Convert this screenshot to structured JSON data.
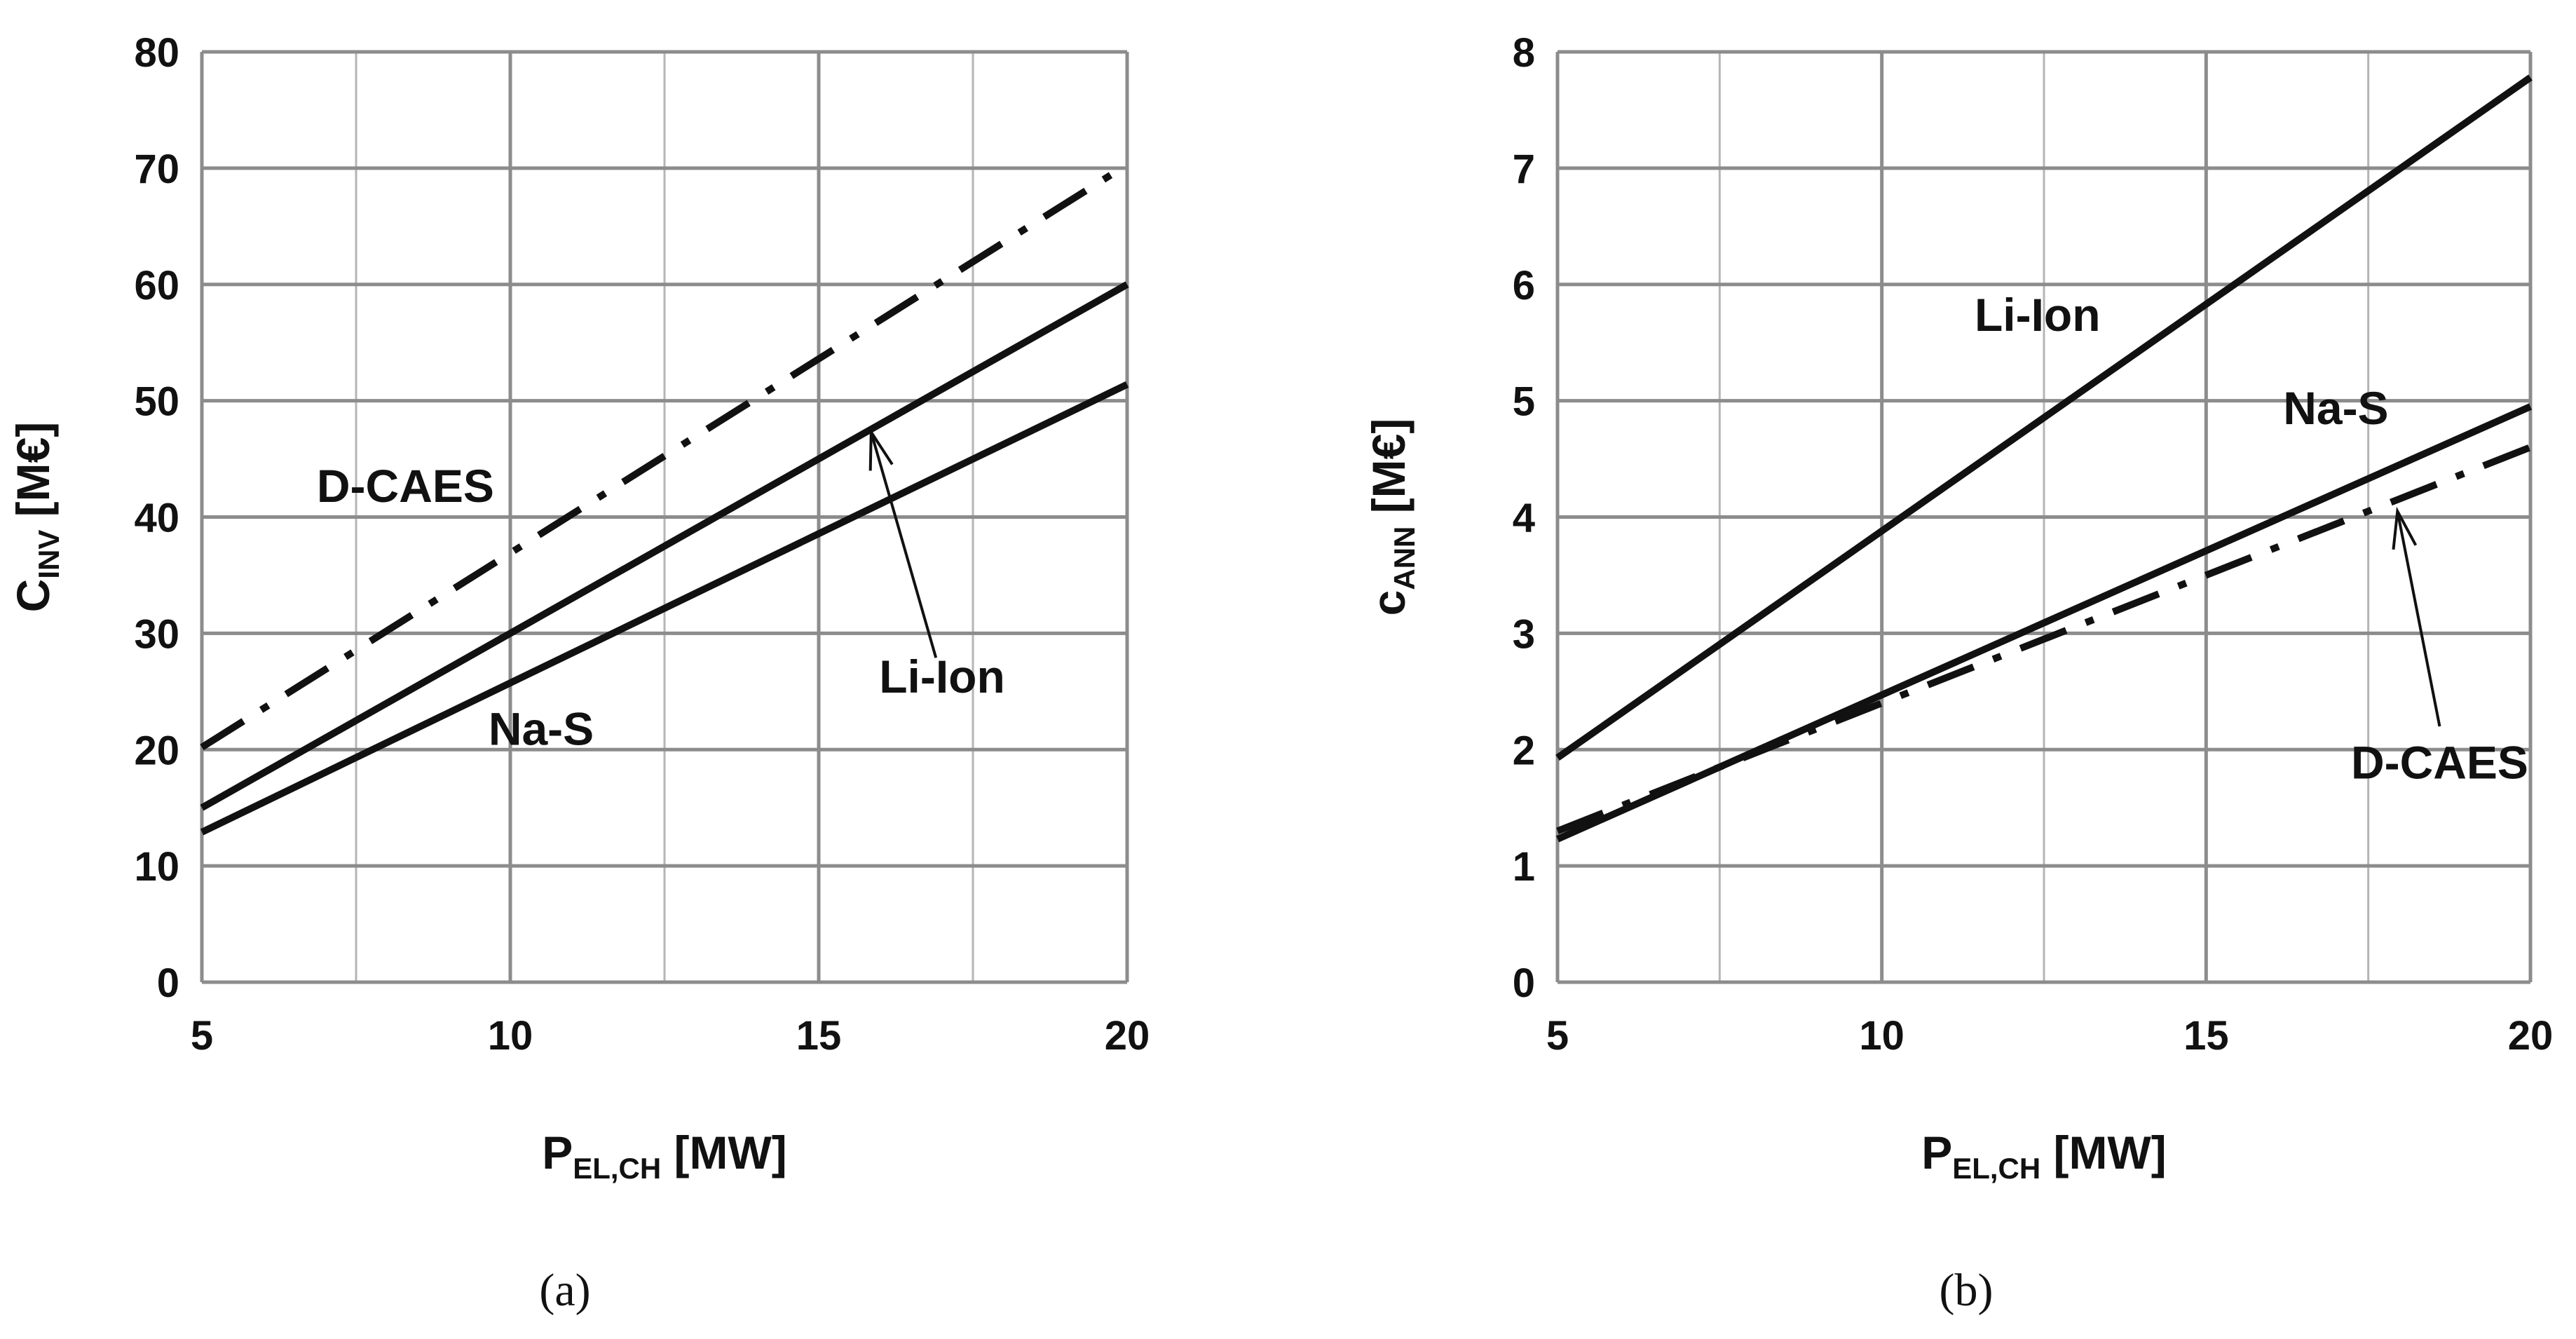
{
  "chart_data": [
    {
      "id": "a",
      "type": "line",
      "caption": "(a)",
      "xlabel": {
        "main": "P",
        "sub": "EL,CH",
        "unit": " [MW]"
      },
      "ylabel": {
        "main": "C",
        "sub": "INV",
        "unit": " [M€]"
      },
      "xlim": [
        5,
        20
      ],
      "ylim": [
        0,
        80
      ],
      "xticks": [
        5,
        10,
        15,
        20
      ],
      "xgrid": [
        5,
        7.5,
        10,
        12.5,
        15,
        17.5,
        20
      ],
      "yticks": [
        0,
        10,
        20,
        30,
        40,
        50,
        60,
        70,
        80
      ],
      "grid": true,
      "series": [
        {
          "name": "D-CAES",
          "style": "dashdot",
          "x": [
            5,
            20
          ],
          "y": [
            20.2,
            70.3
          ]
        },
        {
          "name": "Li-Ion",
          "style": "solid",
          "x": [
            5,
            20
          ],
          "y": [
            15.0,
            60.0
          ]
        },
        {
          "name": "Na-S",
          "style": "solid",
          "x": [
            5,
            20
          ],
          "y": [
            12.9,
            51.4
          ]
        }
      ],
      "annotations": [
        {
          "text": "D-CAES",
          "x": 8.3,
          "y": 41.3,
          "arrow": false
        },
        {
          "text": "Na-S",
          "x": 10.5,
          "y": 20.4,
          "arrow": false
        },
        {
          "text": "Li-Ion",
          "x": 17.0,
          "y": 24.9,
          "arrow": true,
          "arrow_from": [
            16.9,
            27.9
          ],
          "arrow_to": [
            15.85,
            47.3
          ]
        }
      ]
    },
    {
      "id": "b",
      "type": "line",
      "caption": "(b)",
      "xlabel": {
        "main": "P",
        "sub": "EL,CH",
        "unit": " [MW]"
      },
      "ylabel": {
        "main": "c",
        "sub": "ANN",
        "unit": " [M€]"
      },
      "xlim": [
        5,
        20
      ],
      "ylim": [
        0,
        8
      ],
      "xticks": [
        5,
        10,
        15,
        20
      ],
      "xgrid": [
        5,
        7.5,
        10,
        12.5,
        15,
        17.5,
        20
      ],
      "yticks": [
        0,
        1,
        2,
        3,
        4,
        5,
        6,
        7,
        8
      ],
      "grid": true,
      "series": [
        {
          "name": "Li-Ion",
          "style": "solid",
          "x": [
            5,
            20
          ],
          "y": [
            1.93,
            7.78
          ]
        },
        {
          "name": "Na-S",
          "style": "solid",
          "x": [
            5,
            20
          ],
          "y": [
            1.23,
            4.95
          ]
        },
        {
          "name": "D-CAES",
          "style": "dashdot",
          "x": [
            5,
            20
          ],
          "y": [
            1.3,
            4.6
          ]
        }
      ],
      "annotations": [
        {
          "text": "Li-Ion",
          "x": 12.4,
          "y": 5.6,
          "arrow": false
        },
        {
          "text": "Na-S",
          "x": 17.0,
          "y": 4.8,
          "arrow": false
        },
        {
          "text": "D-CAES",
          "x": 18.6,
          "y": 1.75,
          "arrow": true,
          "arrow_from": [
            18.6,
            2.2
          ],
          "arrow_to": [
            17.95,
            4.05
          ]
        }
      ]
    }
  ]
}
